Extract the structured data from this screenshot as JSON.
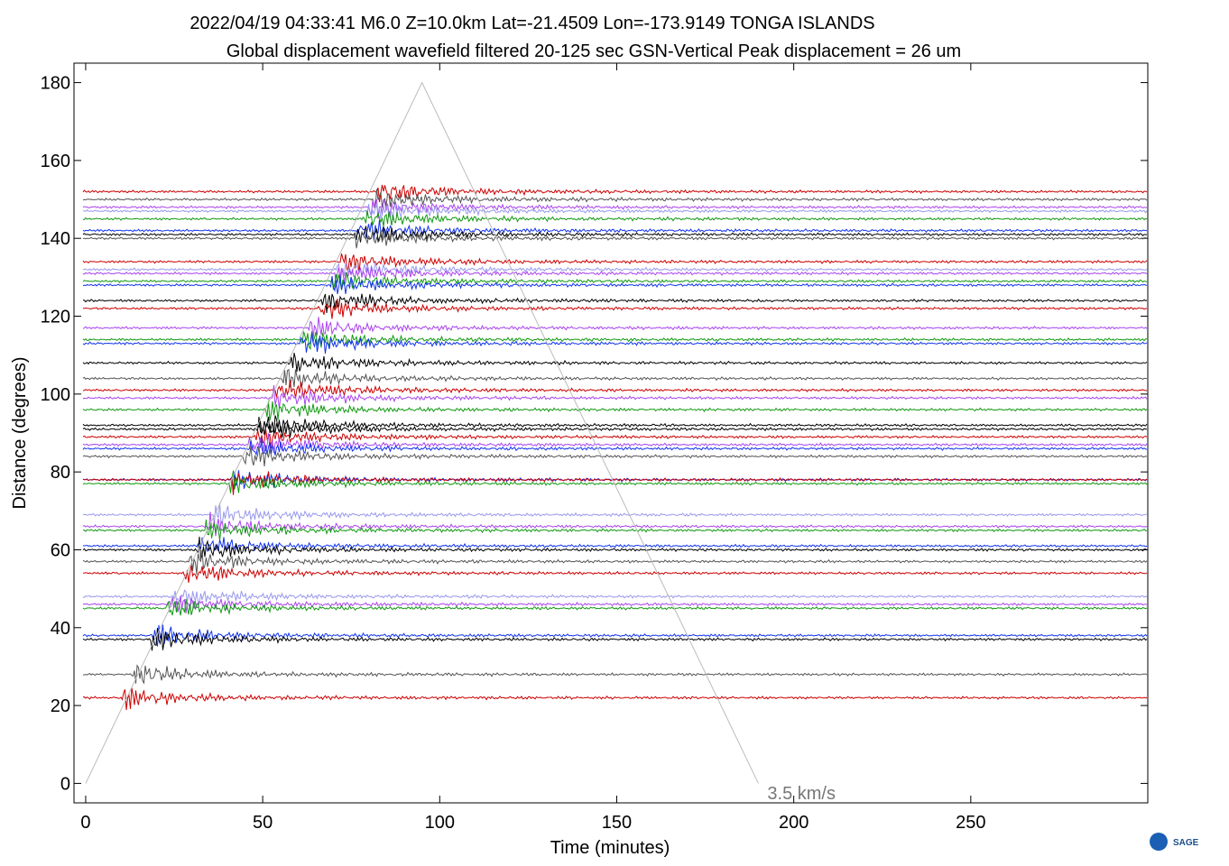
{
  "chart_data": {
    "type": "record-section",
    "title": "2022/04/19  04:33:41   M6.0  Z=10.0km  Lat=-21.4509 Lon=-173.9149  TONGA ISLANDS",
    "subtitle": "Global displacement wavefield     filtered 20-125 sec    GSN-Vertical    Peak displacement =  26 um",
    "x_label": "Time (minutes)",
    "y_label": "Distance (degrees)",
    "xlim": [
      -3.3,
      300
    ],
    "ylim": [
      -5,
      185
    ],
    "xticks": [
      0,
      50,
      100,
      150,
      200,
      250
    ],
    "yticks": [
      0,
      20,
      40,
      60,
      80,
      100,
      120,
      140,
      160,
      180
    ],
    "velocity_line": {
      "label": "3.5 km/s",
      "color": "#bbbbbb",
      "x": [
        0,
        95,
        190
      ],
      "y": [
        0,
        180,
        0
      ]
    },
    "logo": "SAGE",
    "series": [
      {
        "color": "#cc0000",
        "distance": 152
      },
      {
        "color": "#555555",
        "distance": 150
      },
      {
        "color": "#aa44ee",
        "distance": 148
      },
      {
        "color": "#9999ee",
        "distance": 147
      },
      {
        "color": "#119911",
        "distance": 145
      },
      {
        "color": "#1133ee",
        "distance": 142
      },
      {
        "color": "#000000",
        "distance": 141
      },
      {
        "color": "#555555",
        "distance": 140
      },
      {
        "color": "#cc0000",
        "distance": 134
      },
      {
        "color": "#9999ee",
        "distance": 132
      },
      {
        "color": "#aa44ee",
        "distance": 131
      },
      {
        "color": "#119911",
        "distance": 129
      },
      {
        "color": "#1133ee",
        "distance": 128
      },
      {
        "color": "#000000",
        "distance": 124
      },
      {
        "color": "#cc0000",
        "distance": 122
      },
      {
        "color": "#aa44ee",
        "distance": 117
      },
      {
        "color": "#119911",
        "distance": 114
      },
      {
        "color": "#1133ee",
        "distance": 113
      },
      {
        "color": "#000000",
        "distance": 108
      },
      {
        "color": "#555555",
        "distance": 104
      },
      {
        "color": "#cc0000",
        "distance": 101
      },
      {
        "color": "#aa44ee",
        "distance": 99
      },
      {
        "color": "#119911",
        "distance": 96
      },
      {
        "color": "#000000",
        "distance": 92
      },
      {
        "color": "#000000",
        "distance": 91
      },
      {
        "color": "#cc0000",
        "distance": 89
      },
      {
        "color": "#aa44ee",
        "distance": 87
      },
      {
        "color": "#1133ee",
        "distance": 86
      },
      {
        "color": "#555555",
        "distance": 84
      },
      {
        "color": "#1133ee",
        "distance": 78
      },
      {
        "color": "#cc0000",
        "distance": 78
      },
      {
        "color": "#119911",
        "distance": 77
      },
      {
        "color": "#9999ee",
        "distance": 69
      },
      {
        "color": "#aa44ee",
        "distance": 66
      },
      {
        "color": "#119911",
        "distance": 65
      },
      {
        "color": "#1133ee",
        "distance": 61
      },
      {
        "color": "#000000",
        "distance": 60
      },
      {
        "color": "#555555",
        "distance": 57
      },
      {
        "color": "#cc0000",
        "distance": 54
      },
      {
        "color": "#9999ee",
        "distance": 48
      },
      {
        "color": "#aa44ee",
        "distance": 46
      },
      {
        "color": "#119911",
        "distance": 45
      },
      {
        "color": "#1133ee",
        "distance": 38
      },
      {
        "color": "#000000",
        "distance": 37
      },
      {
        "color": "#555555",
        "distance": 28
      },
      {
        "color": "#cc0000",
        "distance": 22
      }
    ]
  }
}
